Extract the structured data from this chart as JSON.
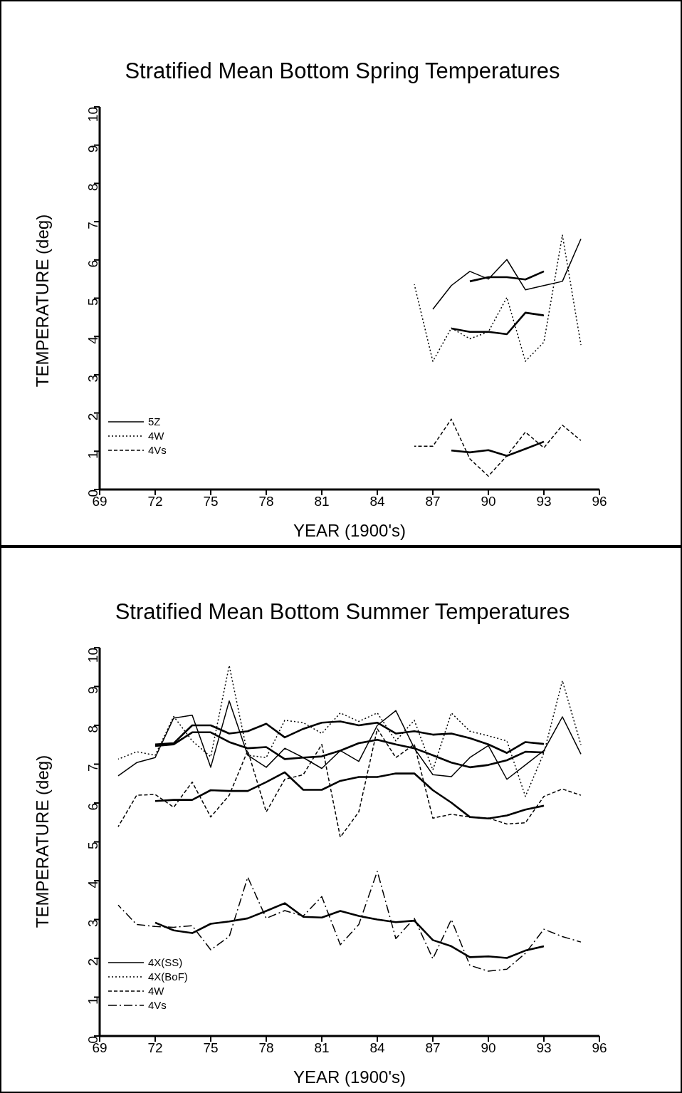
{
  "chart_data": [
    {
      "type": "line",
      "title": "Stratified Mean Bottom Spring Temperatures",
      "xlabel": "YEAR (1900's)",
      "ylabel": "TEMPERATURE (deg)",
      "xlim": [
        69,
        96
      ],
      "xticks": [
        69,
        72,
        75,
        78,
        81,
        84,
        87,
        90,
        93,
        96
      ],
      "ylim": [
        0,
        10
      ],
      "yticks": [
        0,
        1,
        2,
        3,
        4,
        5,
        6,
        7,
        8,
        9,
        10
      ],
      "legend": "bottom left",
      "series": [
        {
          "name": "5Z",
          "color": "#000000",
          "line_style": "solid",
          "x": [
            87,
            88,
            89,
            90,
            91,
            92,
            93,
            94,
            95
          ],
          "values": [
            4.71,
            5.33,
            5.7,
            5.5,
            6.01,
            5.22,
            5.33,
            5.44,
            6.55
          ]
        },
        {
          "color": "#000000",
          "line_style": "solid",
          "x": [
            89,
            90,
            91,
            92,
            93
          ],
          "values": [
            5.44,
            5.55,
            5.55,
            5.49,
            5.7
          ]
        },
        {
          "name": "4W",
          "color": "#000000",
          "line_style": "dotted",
          "x": [
            86,
            87,
            88,
            89,
            90,
            91,
            92,
            93,
            94,
            95
          ],
          "values": [
            5.36,
            3.35,
            4.22,
            3.94,
            4.12,
            5.02,
            3.35,
            3.85,
            6.65,
            3.78
          ]
        },
        {
          "color": "#000000",
          "line_style": "solid",
          "x": [
            88,
            89,
            90,
            91,
            92,
            93
          ],
          "values": [
            4.21,
            4.12,
            4.12,
            4.06,
            4.62,
            4.55
          ]
        },
        {
          "name": "4Vs",
          "color": "#000000",
          "line_style": "dashed",
          "x": [
            86,
            87,
            88,
            89,
            90,
            91,
            92,
            93,
            94,
            95
          ],
          "values": [
            1.13,
            1.13,
            1.84,
            0.8,
            0.35,
            0.88,
            1.5,
            1.09,
            1.68,
            1.28
          ]
        },
        {
          "color": "#000000",
          "line_style": "solid",
          "x": [
            88,
            89,
            90,
            91,
            92,
            93
          ],
          "values": [
            1.02,
            0.97,
            1.03,
            0.88,
            1.06,
            1.25
          ]
        }
      ]
    },
    {
      "type": "line",
      "title": "Stratified Mean Bottom Summer Temperatures",
      "xlabel": "YEAR (1900's)",
      "ylabel": "TEMPERATURE (deg)",
      "xlim": [
        69,
        96
      ],
      "xticks": [
        69,
        72,
        75,
        78,
        81,
        84,
        87,
        90,
        93,
        96
      ],
      "ylim": [
        0,
        10
      ],
      "yticks": [
        0,
        1,
        2,
        3,
        4,
        5,
        6,
        7,
        8,
        9,
        10
      ],
      "legend": "bottom left",
      "series": [
        {
          "name": "4X(SS)",
          "color": "#000000",
          "line_style": "solid",
          "x": [
            70,
            71,
            72,
            73,
            74,
            75,
            76,
            77,
            78,
            79,
            80,
            81,
            82,
            83,
            84,
            85,
            86,
            87,
            88,
            89,
            90,
            91,
            92,
            93,
            94,
            95
          ],
          "values": [
            6.7,
            7.04,
            7.17,
            8.19,
            8.26,
            6.92,
            8.63,
            7.23,
            6.92,
            7.41,
            7.17,
            6.89,
            7.35,
            7.07,
            8.0,
            8.38,
            7.41,
            6.73,
            6.68,
            7.17,
            7.48,
            6.61,
            6.98,
            7.35,
            8.22,
            7.26
          ]
        },
        {
          "color": "#000000",
          "line_style": "solid",
          "x": [
            72,
            73,
            74,
            75,
            76,
            77,
            78,
            79,
            80,
            81,
            82,
            83,
            84,
            85,
            86,
            87,
            88,
            89,
            90,
            91,
            92,
            93
          ],
          "values": [
            7.47,
            7.51,
            7.82,
            7.82,
            7.57,
            7.41,
            7.44,
            7.13,
            7.17,
            7.2,
            7.35,
            7.54,
            7.63,
            7.51,
            7.41,
            7.23,
            7.04,
            6.92,
            6.98,
            7.1,
            7.32,
            7.3
          ]
        },
        {
          "name": "4X(BoF)",
          "color": "#000000",
          "line_style": "dotted",
          "x": [
            70,
            71,
            72,
            73,
            74,
            75,
            76,
            77,
            78,
            79,
            80,
            81,
            82,
            83,
            84,
            85,
            86,
            87,
            88,
            89,
            90,
            91,
            92,
            93,
            94,
            95
          ],
          "values": [
            7.13,
            7.32,
            7.23,
            8.23,
            7.6,
            7.19,
            9.54,
            7.23,
            7.17,
            8.13,
            8.07,
            7.79,
            8.32,
            8.1,
            8.32,
            7.6,
            8.13,
            6.85,
            8.32,
            7.85,
            7.73,
            7.6,
            6.17,
            7.29,
            9.15,
            7.5
          ]
        },
        {
          "color": "#000000",
          "line_style": "solid",
          "x": [
            72,
            73,
            74,
            75,
            76,
            77,
            78,
            79,
            80,
            81,
            82,
            83,
            84,
            85,
            86,
            87,
            88,
            89,
            90,
            91,
            92,
            93
          ],
          "values": [
            7.51,
            7.54,
            8.0,
            8.0,
            7.79,
            7.85,
            8.04,
            7.69,
            7.91,
            8.07,
            8.1,
            8.0,
            8.07,
            7.79,
            7.85,
            7.76,
            7.79,
            7.67,
            7.51,
            7.29,
            7.57,
            7.52
          ]
        },
        {
          "name": "4W",
          "color": "#000000",
          "line_style": "dashed",
          "x": [
            70,
            71,
            72,
            73,
            74,
            75,
            76,
            77,
            78,
            79,
            80,
            81,
            82,
            83,
            84,
            85,
            86,
            87,
            88,
            89,
            90,
            91,
            92,
            93,
            94,
            95
          ],
          "values": [
            5.39,
            6.2,
            6.22,
            5.89,
            6.54,
            5.64,
            6.2,
            7.35,
            5.77,
            6.61,
            6.73,
            7.51,
            5.12,
            5.77,
            7.91,
            7.17,
            7.51,
            5.61,
            5.71,
            5.64,
            5.61,
            5.46,
            5.49,
            6.17,
            6.36,
            6.2
          ]
        },
        {
          "color": "#000000",
          "line_style": "solid",
          "x": [
            72,
            73,
            74,
            75,
            76,
            77,
            78,
            79,
            80,
            81,
            82,
            83,
            84,
            85,
            86,
            87,
            88,
            89,
            90,
            91,
            92,
            93
          ],
          "values": [
            6.05,
            6.08,
            6.08,
            6.33,
            6.31,
            6.31,
            6.54,
            6.79,
            6.34,
            6.34,
            6.57,
            6.67,
            6.67,
            6.76,
            6.76,
            6.33,
            6.01,
            5.64,
            5.6,
            5.68,
            5.83,
            5.93
          ]
        },
        {
          "name": "4Vs",
          "color": "#000000",
          "line_style": "dashdot",
          "x": [
            70,
            71,
            72,
            73,
            74,
            75,
            76,
            77,
            78,
            79,
            80,
            81,
            82,
            83,
            84,
            85,
            86,
            87,
            88,
            89,
            90,
            91,
            92,
            93,
            94,
            95
          ],
          "values": [
            3.37,
            2.87,
            2.82,
            2.8,
            2.84,
            2.22,
            2.56,
            4.09,
            3.03,
            3.23,
            3.09,
            3.59,
            2.35,
            2.87,
            4.24,
            2.51,
            3.03,
            1.99,
            3.0,
            1.82,
            1.67,
            1.72,
            2.13,
            2.75,
            2.56,
            2.42
          ]
        },
        {
          "color": "#000000",
          "line_style": "solid",
          "x": [
            72,
            73,
            74,
            75,
            76,
            77,
            78,
            79,
            80,
            81,
            82,
            83,
            84,
            85,
            86,
            87,
            88,
            89,
            90,
            91,
            92,
            93
          ],
          "values": [
            2.92,
            2.72,
            2.65,
            2.89,
            2.95,
            3.03,
            3.22,
            3.42,
            3.07,
            3.05,
            3.22,
            3.09,
            3.0,
            2.93,
            2.97,
            2.47,
            2.31,
            2.03,
            2.05,
            2.01,
            2.2,
            2.31
          ]
        }
      ]
    }
  ]
}
